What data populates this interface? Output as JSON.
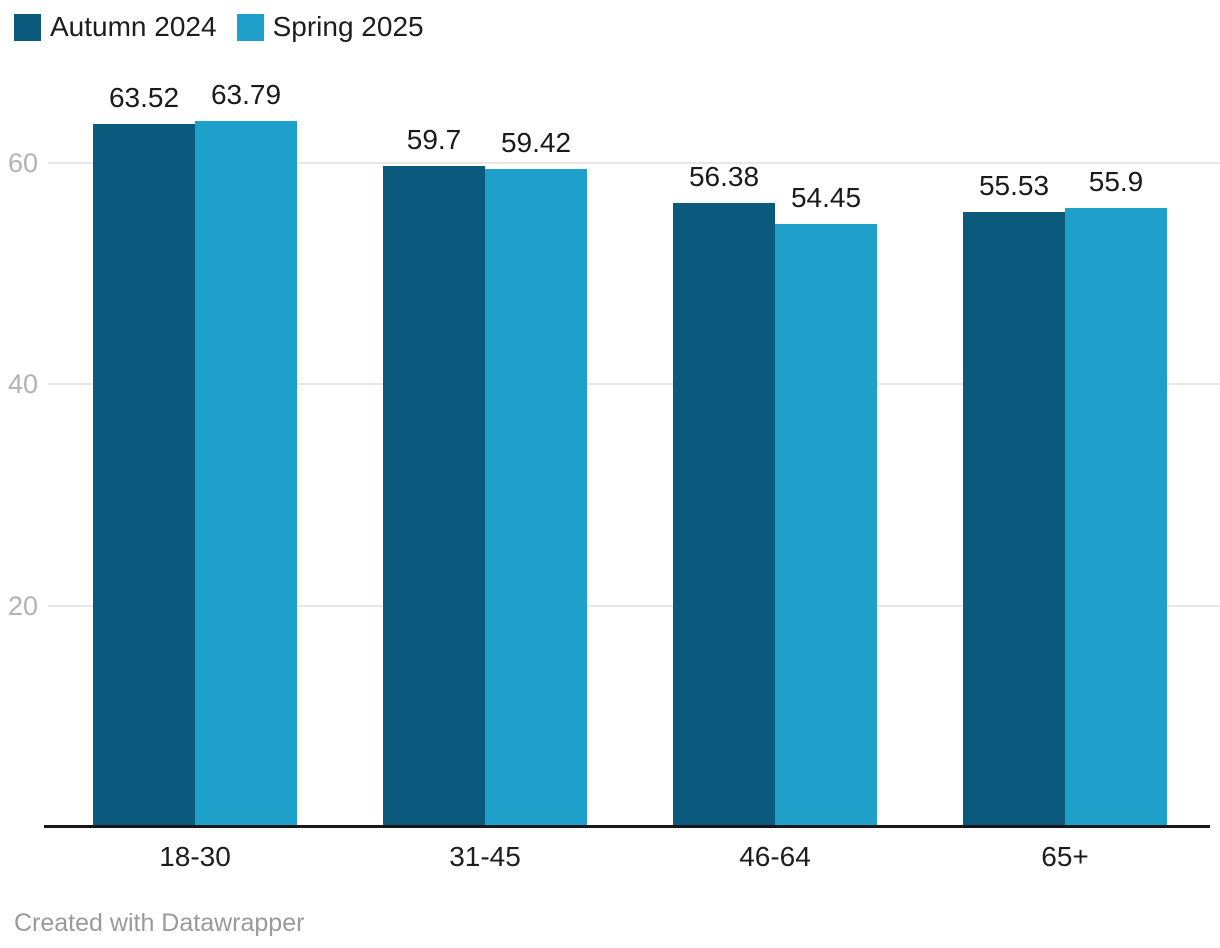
{
  "chart_data": {
    "type": "bar",
    "title": "",
    "xlabel": "",
    "ylabel": "",
    "categories": [
      "18-30",
      "31-45",
      "46-64",
      "65+"
    ],
    "series": [
      {
        "name": "Autumn 2024",
        "color": "#0b597d",
        "values": [
          63.52,
          59.7,
          56.38,
          55.53
        ]
      },
      {
        "name": "Spring 2025",
        "color": "#1fa0cb",
        "values": [
          63.79,
          59.42,
          54.45,
          55.9
        ]
      }
    ],
    "yticks": [
      20,
      40,
      60
    ],
    "ylim": [
      0,
      65
    ],
    "grid": true,
    "grid_color": "#e7e7e7",
    "tick_label_color": "#b3b3b3",
    "value_label_color": "#1a1a1a",
    "axis_line_color": "#18181a",
    "legend_position": "top-left",
    "value_labels_shown": true
  },
  "legend": {
    "items": [
      {
        "label": "Autumn 2024",
        "color": "#0b597d"
      },
      {
        "label": "Spring 2025",
        "color": "#1fa0cb"
      }
    ]
  },
  "footer": {
    "text": "Created with Datawrapper"
  }
}
